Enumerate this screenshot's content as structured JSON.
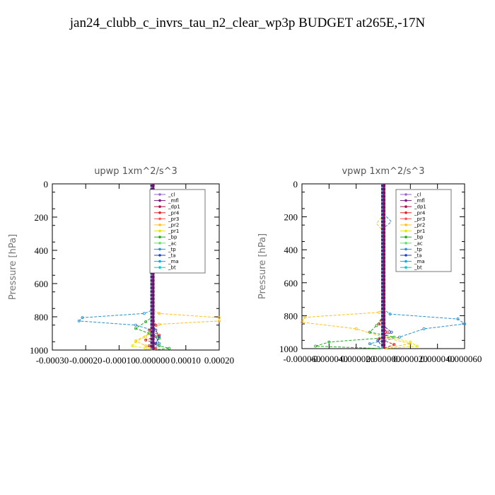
{
  "title": "jan24_clubb_c_invrs_tau_n2_clear_wp3p  BUDGET at265E,-17N",
  "legend_entries": [
    {
      "label": "_cl",
      "color": "#9966cc"
    },
    {
      "label": "_mfl",
      "color": "#7a1a7a"
    },
    {
      "label": "_dp1",
      "color": "#b01050"
    },
    {
      "label": "_pr4",
      "color": "#e02020"
    },
    {
      "label": "_pr3",
      "color": "#ff5050"
    },
    {
      "label": "_pr2",
      "color": "#ffc020"
    },
    {
      "label": "_pr1",
      "color": "#e6e600"
    },
    {
      "label": "_bp",
      "color": "#22aa22"
    },
    {
      "label": "_ac",
      "color": "#66dd66"
    },
    {
      "label": "_tp",
      "color": "#2a8fcf"
    },
    {
      "label": "_ta",
      "color": "#2040c0"
    },
    {
      "label": "_ma",
      "color": "#00aaff"
    },
    {
      "label": "_bt",
      "color": "#00cccc"
    }
  ],
  "chart_data": [
    {
      "type": "line",
      "title": "upwp   1xm^2/s^3",
      "ylabel": "Pressure [hPa]",
      "ylim": [
        1000,
        0
      ],
      "xlim": [
        -0.0003,
        0.0002
      ],
      "xticks": [
        -0.0003,
        -0.0002,
        -0.0001,
        0.0,
        0.0001,
        0.0002
      ],
      "xtick_labels": [
        "-0.00030",
        "-0.00020",
        "-0.00010",
        "0.000000",
        "0.00010",
        "0.00020"
      ],
      "yticks": [
        0,
        200,
        400,
        600,
        800,
        1000
      ],
      "legend_position": "top-right",
      "series": [
        {
          "name": "_tp",
          "x": [
            0.0,
            0.0,
            -2.5e-05,
            -0.00021,
            -0.00022,
            -5e-05,
            0.0,
            1e-05,
            2e-05,
            0.0
          ],
          "y": [
            0,
            760,
            780,
            805,
            825,
            850,
            880,
            920,
            960,
            1000
          ]
        },
        {
          "name": "_pr2",
          "x": [
            0.0,
            0.0,
            2e-05,
            0.0002,
            0.0002,
            2e-05,
            -1e-05,
            -5e-05,
            -2e-05,
            0.0
          ],
          "y": [
            0,
            760,
            780,
            805,
            825,
            845,
            900,
            945,
            975,
            1000
          ]
        },
        {
          "name": "_bp",
          "x": [
            0.0,
            0.0,
            -2e-05,
            -5e-05,
            -1e-05,
            2e-05,
            1e-05,
            2e-05,
            5e-05,
            0.0
          ],
          "y": [
            0,
            800,
            830,
            870,
            900,
            930,
            960,
            975,
            990,
            1000
          ]
        },
        {
          "name": "_pr4",
          "x": [
            0.0,
            0.0,
            1e-05,
            -1e-05,
            2e-05,
            -2e-05,
            1e-05,
            -1e-05,
            1e-05,
            0.0
          ],
          "y": [
            0,
            800,
            850,
            880,
            910,
            940,
            960,
            975,
            990,
            1000
          ]
        },
        {
          "name": "_pr1",
          "x": [
            0.0,
            0.0,
            -2e-05,
            -5e-05,
            -6e-05,
            -2e-05,
            0.0
          ],
          "y": [
            0,
            880,
            920,
            950,
            975,
            990,
            1000
          ]
        },
        {
          "name": "_ta",
          "x": [
            0.0,
            0.0,
            1e-05,
            2e-05,
            1e-05,
            0.0
          ],
          "y": [
            0,
            850,
            880,
            920,
            960,
            1000
          ]
        }
      ]
    },
    {
      "type": "line",
      "title": "vpwp   1xm^2/s^3",
      "ylabel": "Pressure [hPa]",
      "ylim": [
        1000,
        0
      ],
      "xlim": [
        -6e-05,
        6e-05
      ],
      "xticks": [
        -6e-05,
        -4e-05,
        -2e-05,
        0.0,
        2e-05,
        4e-05,
        6e-05
      ],
      "xtick_labels": [
        "-0.000060",
        "-0.000040",
        "-0.000020",
        "0.000000",
        "0.000020",
        "0.000040",
        "0.000060"
      ],
      "yticks": [
        0,
        200,
        400,
        600,
        800,
        1000
      ],
      "legend_position": "top-right",
      "series": [
        {
          "name": "_tp",
          "x": [
            0.0,
            0.0,
            6e-06,
            0.0,
            0.0,
            5e-06,
            5.5e-05,
            6e-05,
            3e-05,
            1.2e-05,
            -1e-05,
            0.0
          ],
          "y": [
            0,
            180,
            230,
            270,
            760,
            790,
            820,
            850,
            880,
            930,
            970,
            1000
          ]
        },
        {
          "name": "_pr2",
          "x": [
            0.0,
            0.0,
            -5e-06,
            -2e-06,
            0.0,
            0.0,
            -3e-06,
            -5.8e-05,
            -6e-05,
            -2e-05,
            0.0,
            2e-05,
            0.0
          ],
          "y": [
            0,
            190,
            240,
            270,
            290,
            760,
            780,
            810,
            840,
            880,
            930,
            970,
            1000
          ]
        },
        {
          "name": "_bp",
          "x": [
            0.0,
            0.0,
            -5e-06,
            -1e-05,
            8e-06,
            -4e-05,
            -5e-05,
            0.0
          ],
          "y": [
            0,
            800,
            860,
            900,
            930,
            960,
            985,
            1000
          ]
        },
        {
          "name": "_pr4",
          "x": [
            0.0,
            0.0,
            -3e-06,
            3e-06,
            -3e-06,
            8e-06,
            0.0
          ],
          "y": [
            0,
            800,
            850,
            900,
            940,
            975,
            1000
          ]
        },
        {
          "name": "_pr1",
          "x": [
            0.0,
            0.0,
            2e-05,
            2.5e-05,
            0.0
          ],
          "y": [
            0,
            920,
            960,
            985,
            1000
          ]
        },
        {
          "name": "_ta",
          "x": [
            0.0,
            0.0,
            6e-06,
            -4e-06,
            0.0
          ],
          "y": [
            0,
            860,
            900,
            950,
            1000
          ]
        }
      ]
    }
  ]
}
